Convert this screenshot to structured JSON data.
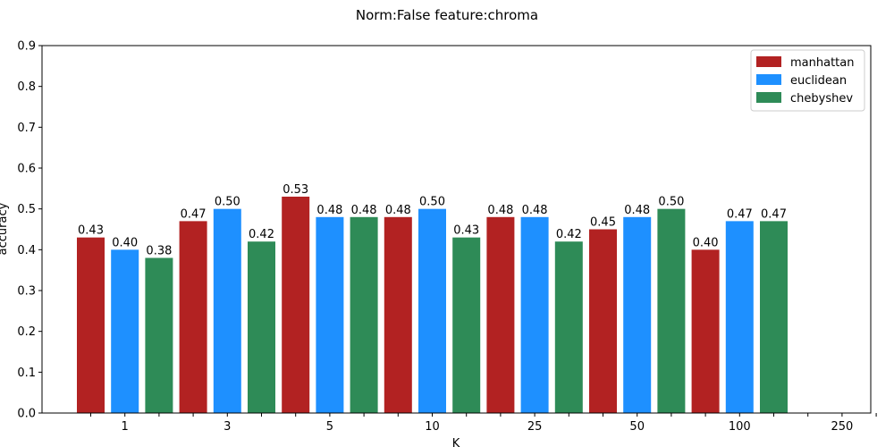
{
  "chart_data": {
    "type": "bar",
    "title": "Norm:False feature:chroma",
    "xlabel": "K",
    "ylabel": "accuracy",
    "ylim": [
      0,
      0.9
    ],
    "yticks": [
      "0.0",
      "0.1",
      "0.2",
      "0.3",
      "0.4",
      "0.5",
      "0.6",
      "0.7",
      "0.8",
      "0.9"
    ],
    "categories": [
      "1",
      "3",
      "5",
      "10",
      "25",
      "50",
      "100",
      "250"
    ],
    "grid": false,
    "legend_position": "top-right",
    "series": [
      {
        "name": "manhattan",
        "color": "#b22222",
        "values": [
          0.43,
          0.47,
          0.53,
          0.48,
          0.48,
          0.45,
          0.4,
          null
        ],
        "labels": [
          "0.43",
          "0.47",
          "0.53",
          "0.48",
          "0.48",
          "0.45",
          "0.40",
          ""
        ]
      },
      {
        "name": "euclidean",
        "color": "#1e90ff",
        "values": [
          0.4,
          0.5,
          0.48,
          0.5,
          0.48,
          0.48,
          0.47,
          null
        ],
        "labels": [
          "0.40",
          "0.50",
          "0.48",
          "0.50",
          "0.48",
          "0.48",
          "0.47",
          ""
        ]
      },
      {
        "name": "chebyshev",
        "color": "#2e8b57",
        "values": [
          0.38,
          0.42,
          0.48,
          0.43,
          0.42,
          0.5,
          0.47,
          null
        ],
        "labels": [
          "0.38",
          "0.42",
          "0.48",
          "0.43",
          "0.42",
          "0.50",
          "0.47",
          ""
        ]
      }
    ]
  }
}
